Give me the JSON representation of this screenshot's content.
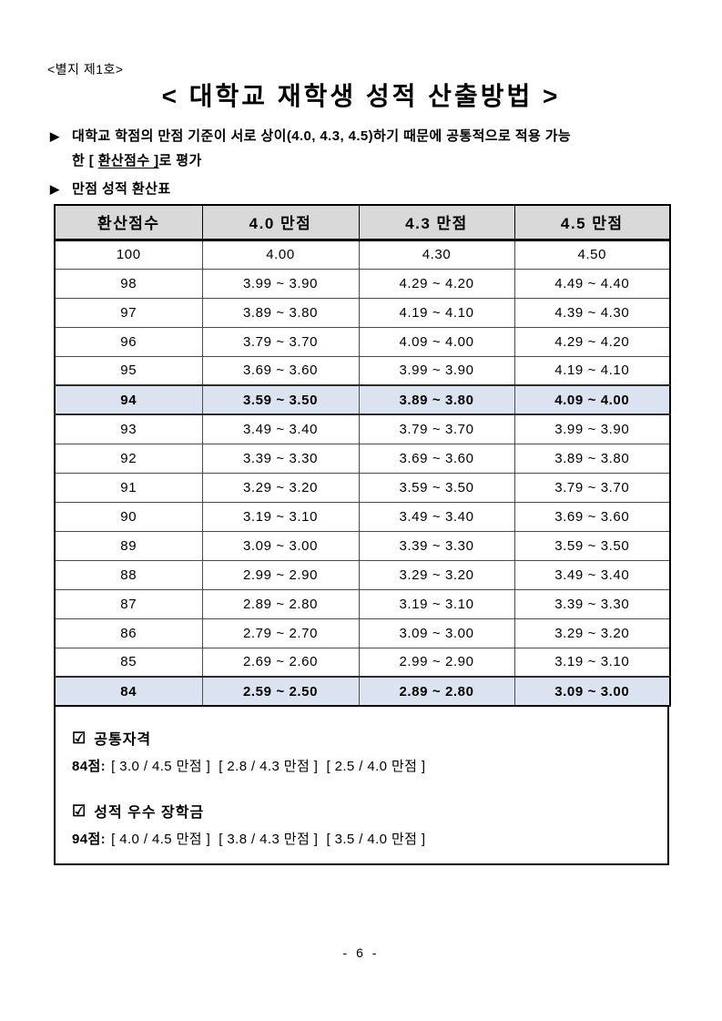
{
  "page": {
    "attachment_label": "<별지 제1호>",
    "title": "< 대학교 재학생 성적 산출방법 >",
    "bullet_marker": "▶",
    "footer": "- 6 -"
  },
  "intro": {
    "bullet1_line1": "대학교 학점의 만점 기준이 서로 상이(4.0, 4.3, 4.5)하기 때문에 공통적으로 적용 가능",
    "bullet1_line2_prefix": "한 [ ",
    "bullet1_line2_underlined": "환산점수 ]",
    "bullet1_line2_suffix": "로 평가",
    "bullet2": "만점 성적 환산표"
  },
  "table": {
    "headers": [
      "환산점수",
      "4.0 만점",
      "4.3 만점",
      "4.5 만점"
    ],
    "rows": [
      {
        "score": "100",
        "v40": "4.00",
        "v43": "4.30",
        "v45": "4.50",
        "highlight": false
      },
      {
        "score": "98",
        "v40": "3.99 ~ 3.90",
        "v43": "4.29 ~ 4.20",
        "v45": "4.49 ~ 4.40",
        "highlight": false
      },
      {
        "score": "97",
        "v40": "3.89 ~ 3.80",
        "v43": "4.19 ~ 4.10",
        "v45": "4.39 ~ 4.30",
        "highlight": false
      },
      {
        "score": "96",
        "v40": "3.79 ~ 3.70",
        "v43": "4.09 ~ 4.00",
        "v45": "4.29 ~ 4.20",
        "highlight": false
      },
      {
        "score": "95",
        "v40": "3.69 ~ 3.60",
        "v43": "3.99 ~ 3.90",
        "v45": "4.19 ~ 4.10",
        "highlight": false
      },
      {
        "score": "94",
        "v40": "3.59 ~ 3.50",
        "v43": "3.89 ~ 3.80",
        "v45": "4.09 ~ 4.00",
        "highlight": true
      },
      {
        "score": "93",
        "v40": "3.49 ~ 3.40",
        "v43": "3.79 ~ 3.70",
        "v45": "3.99 ~ 3.90",
        "highlight": false
      },
      {
        "score": "92",
        "v40": "3.39 ~ 3.30",
        "v43": "3.69 ~ 3.60",
        "v45": "3.89 ~ 3.80",
        "highlight": false
      },
      {
        "score": "91",
        "v40": "3.29 ~ 3.20",
        "v43": "3.59 ~ 3.50",
        "v45": "3.79 ~ 3.70",
        "highlight": false
      },
      {
        "score": "90",
        "v40": "3.19 ~ 3.10",
        "v43": "3.49 ~ 3.40",
        "v45": "3.69 ~ 3.60",
        "highlight": false
      },
      {
        "score": "89",
        "v40": "3.09 ~ 3.00",
        "v43": "3.39 ~ 3.30",
        "v45": "3.59 ~ 3.50",
        "highlight": false
      },
      {
        "score": "88",
        "v40": "2.99 ~ 2.90",
        "v43": "3.29 ~ 3.20",
        "v45": "3.49 ~ 3.40",
        "highlight": false
      },
      {
        "score": "87",
        "v40": "2.89 ~ 2.80",
        "v43": "3.19 ~ 3.10",
        "v45": "3.39 ~ 3.30",
        "highlight": false
      },
      {
        "score": "86",
        "v40": "2.79 ~ 2.70",
        "v43": "3.09 ~ 3.00",
        "v45": "3.29 ~ 3.20",
        "highlight": false
      },
      {
        "score": "85",
        "v40": "2.69 ~ 2.60",
        "v43": "2.99 ~ 2.90",
        "v45": "3.19 ~ 3.10",
        "highlight": false
      },
      {
        "score": "84",
        "v40": "2.59 ~ 2.50",
        "v43": "2.89 ~ 2.80",
        "v45": "3.09 ~ 3.00",
        "highlight": true
      }
    ]
  },
  "notes": {
    "sections": [
      {
        "checkbox": "☑",
        "title": "공통자격",
        "score_label": "84점:",
        "ranges": "[ 3.0 / 4.5 만점 ]  [ 2.8 / 4.3 만점 ]  [ 2.5 / 4.0 만점 ]"
      },
      {
        "checkbox": "☑",
        "title": "성적 우수 장학금",
        "score_label": "94점:",
        "ranges": "[ 4.0 / 4.5 만점 ]  [ 3.8 / 4.3 만점 ]  [ 3.5 / 4.0 만점 ]"
      }
    ]
  },
  "colors": {
    "header_bg": "#d9d9d9",
    "highlight_bg": "#dbe3f1",
    "border": "#000000"
  }
}
